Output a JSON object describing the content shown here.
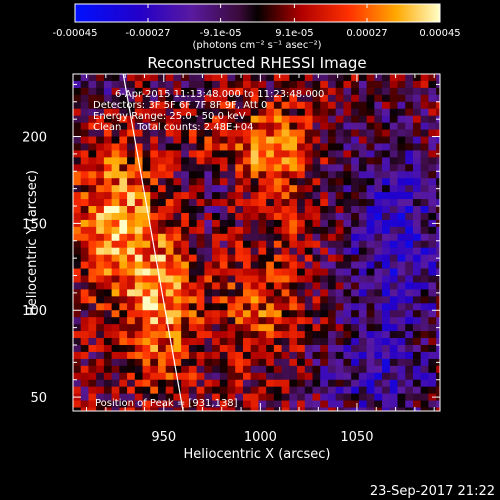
{
  "colorbar": {
    "tick_labels": [
      "-0.00045",
      "-0.00027",
      "-9.1e-05",
      "9.1e-05",
      "0.00027",
      "0.00045"
    ],
    "unit_label": "(photons cm⁻² s⁻¹ asec⁻²)",
    "range": [
      -0.00045,
      0.00045
    ]
  },
  "chart_data": {
    "type": "heatmap",
    "title": "Reconstructed RHESSI Image",
    "xlabel": "Heliocentric X (arcsec)",
    "ylabel": "Heliocentric Y (arcsec)",
    "xlim": [
      903,
      1093
    ],
    "ylim": [
      42,
      236
    ],
    "x_ticks": [
      "950",
      "1000",
      "1050"
    ],
    "y_ticks": [
      "50",
      "100",
      "150",
      "200"
    ],
    "annotations": [
      "6-Apr-2015 11:13:48.000 to 11:23:48.000",
      "Detectors: 3F 5F 6F 7F 8F 9F, Att 0",
      "Energy Range: 25.0 - 50.0 keV",
      "Clean     Total counts: 2.48E+04",
      "Position of Peak = [931,138]"
    ],
    "limb_line": [
      [
        929,
        236
      ],
      [
        960,
        42
      ]
    ],
    "peak_position": [
      931,
      138
    ]
  },
  "footer": {
    "timestamp": "23-Sep-2017 21:22"
  }
}
